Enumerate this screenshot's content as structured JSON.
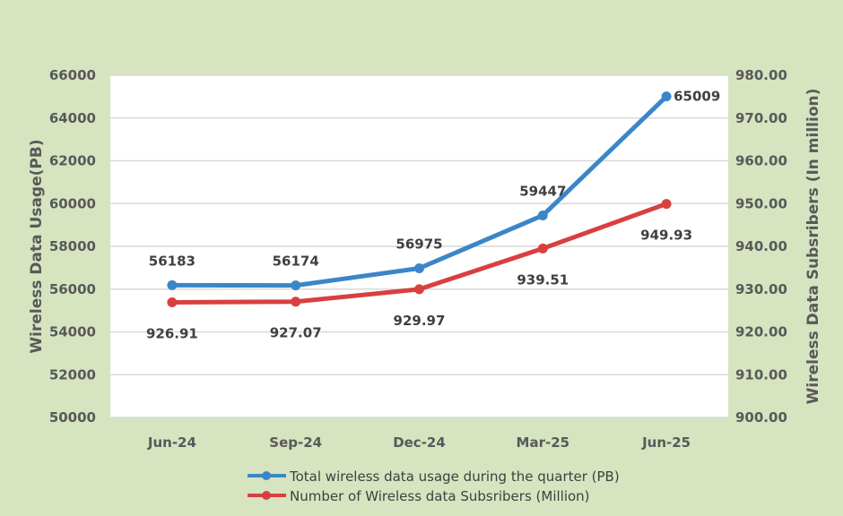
{
  "chart_data": {
    "type": "line",
    "categories": [
      "Jun-24",
      "Sep-24",
      "Dec-24",
      "Mar-25",
      "Jun-25"
    ],
    "series": [
      {
        "name": "Total wireless data usage during the quarter (PB)",
        "axis": "left",
        "color": "#3b86c9",
        "values": [
          56183,
          56174,
          56975,
          59447,
          65009
        ],
        "labels": [
          "56183",
          "56174",
          "56975",
          "59447",
          "65009"
        ]
      },
      {
        "name": "Number of Wireless data Subsribers (Million)",
        "axis": "right",
        "color": "#d8403f",
        "values": [
          926.91,
          927.07,
          929.97,
          939.51,
          949.93
        ],
        "labels": [
          "926.91",
          "927.07",
          "929.97",
          "939.51",
          "949.93"
        ]
      }
    ],
    "ylabel": "Wireless Data Usage(PB)",
    "y2label": "Wireless Data Subsribers (In million)",
    "ylim": [
      50000,
      66000
    ],
    "y2lim": [
      900,
      980
    ],
    "yticks": [
      "50000",
      "52000",
      "54000",
      "56000",
      "58000",
      "60000",
      "62000",
      "64000",
      "66000"
    ],
    "y2ticks": [
      "900.00",
      "910.00",
      "920.00",
      "930.00",
      "940.00",
      "950.00",
      "960.00",
      "970.00",
      "980.00"
    ],
    "grid": true,
    "legend": "bottom"
  }
}
